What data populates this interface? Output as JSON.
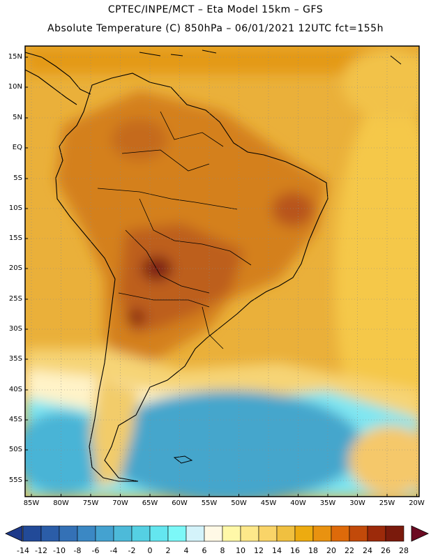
{
  "header": {
    "line1": "CPTEC/INPE/MCT –  Eta Model 15km – GFS",
    "line2": "Absolute Temperature (C) 850hPa – 06/01/2021 12UTC fct=155h"
  },
  "map": {
    "lat_labels": [
      "15N",
      "10N",
      "5N",
      "EQ",
      "5S",
      "10S",
      "15S",
      "20S",
      "25S",
      "30S",
      "35S",
      "40S",
      "45S",
      "50S",
      "55S"
    ],
    "lon_labels": [
      "85W",
      "80W",
      "75W",
      "70W",
      "65W",
      "60W",
      "55W",
      "50W",
      "45W",
      "40W",
      "35W",
      "30W",
      "25W",
      "20W"
    ],
    "ocean_color": "#eab03a",
    "land_hot_color": "#b3551c",
    "cold_color": "#4fc6dc"
  },
  "colorbar": {
    "labels": [
      "-14",
      "-12",
      "-10",
      "-8",
      "-6",
      "-4",
      "-2",
      "0",
      "2",
      "4",
      "6",
      "8",
      "10",
      "12",
      "14",
      "16",
      "18",
      "20",
      "22",
      "24",
      "26",
      "28"
    ],
    "colors": [
      "#1e3a8a",
      "#224a98",
      "#2b5da8",
      "#3471b6",
      "#3b88c4",
      "#44a2d0",
      "#4dbad9",
      "#55d0e3",
      "#64e6ef",
      "#7cf8f8",
      "#d4f3fa",
      "#fff9e6",
      "#fff8a8",
      "#fde88a",
      "#f9d468",
      "#f0c040",
      "#edab10",
      "#e99210",
      "#de6a0a",
      "#c24a0a",
      "#9c2a0a",
      "#7a1a0c",
      "#6c0a22"
    ]
  }
}
